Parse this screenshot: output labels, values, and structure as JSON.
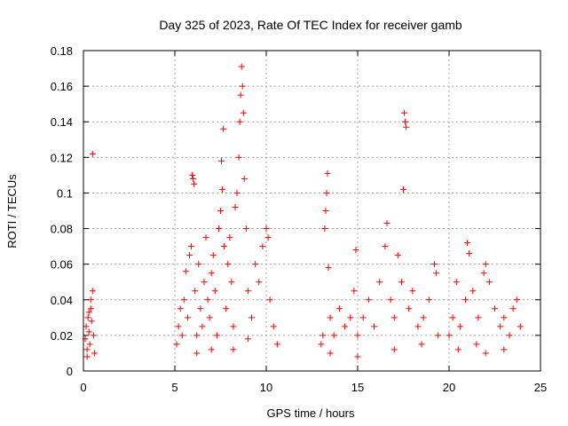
{
  "chart_data": {
    "type": "scatter",
    "title": "Day 325 of 2023, Rate Of TEC Index for receiver gamb",
    "xlabel": "GPS time / hours",
    "ylabel": "ROTI / TECUs",
    "xlim": [
      0,
      25
    ],
    "ylim": [
      0,
      0.18
    ],
    "xticks": [
      "0",
      "5",
      "10",
      "15",
      "20",
      "25"
    ],
    "yticks": [
      "0",
      "0.02",
      "0.04",
      "0.06",
      "0.08",
      "0.1",
      "0.12",
      "0.14",
      "0.16",
      "0.18"
    ],
    "grid": true,
    "marker": "+",
    "color": "#ff0000",
    "series": [
      {
        "points": [
          [
            0.1,
            0.018
          ],
          [
            0.15,
            0.025
          ],
          [
            0.2,
            0.012
          ],
          [
            0.25,
            0.03
          ],
          [
            0.3,
            0.022
          ],
          [
            0.35,
            0.015
          ],
          [
            0.4,
            0.035
          ],
          [
            0.45,
            0.028
          ],
          [
            0.5,
            0.045
          ],
          [
            0.55,
            0.02
          ],
          [
            0.6,
            0.01
          ],
          [
            0.5,
            0.122
          ],
          [
            0.2,
            0.008
          ],
          [
            0.4,
            0.04
          ],
          [
            0.3,
            0.033
          ],
          [
            5.1,
            0.015
          ],
          [
            5.2,
            0.025
          ],
          [
            5.3,
            0.035
          ],
          [
            5.4,
            0.02
          ],
          [
            5.5,
            0.04
          ],
          [
            5.6,
            0.056
          ],
          [
            5.7,
            0.03
          ],
          [
            5.8,
            0.065
          ],
          [
            5.9,
            0.07
          ],
          [
            5.95,
            0.11
          ],
          [
            6.0,
            0.108
          ],
          [
            6.05,
            0.105
          ],
          [
            6.1,
            0.045
          ],
          [
            6.2,
            0.02
          ],
          [
            6.3,
            0.06
          ],
          [
            6.4,
            0.035
          ],
          [
            6.5,
            0.025
          ],
          [
            6.6,
            0.05
          ],
          [
            6.7,
            0.075
          ],
          [
            6.8,
            0.04
          ],
          [
            6.9,
            0.03
          ],
          [
            7.0,
            0.055
          ],
          [
            7.1,
            0.065
          ],
          [
            7.2,
            0.045
          ],
          [
            7.3,
            0.02
          ],
          [
            7.4,
            0.08
          ],
          [
            7.5,
            0.09
          ],
          [
            7.55,
            0.118
          ],
          [
            7.6,
            0.102
          ],
          [
            7.65,
            0.136
          ],
          [
            7.7,
            0.07
          ],
          [
            7.8,
            0.035
          ],
          [
            7.9,
            0.06
          ],
          [
            8.0,
            0.075
          ],
          [
            8.1,
            0.05
          ],
          [
            8.2,
            0.025
          ],
          [
            8.3,
            0.092
          ],
          [
            8.4,
            0.1
          ],
          [
            8.5,
            0.12
          ],
          [
            8.55,
            0.14
          ],
          [
            8.6,
            0.155
          ],
          [
            8.65,
            0.171
          ],
          [
            8.7,
            0.16
          ],
          [
            8.75,
            0.145
          ],
          [
            8.8,
            0.108
          ],
          [
            8.9,
            0.08
          ],
          [
            9.0,
            0.045
          ],
          [
            9.2,
            0.03
          ],
          [
            9.4,
            0.06
          ],
          [
            9.6,
            0.05
          ],
          [
            9.8,
            0.07
          ],
          [
            10.0,
            0.08
          ],
          [
            10.1,
            0.075
          ],
          [
            10.2,
            0.04
          ],
          [
            10.4,
            0.025
          ],
          [
            10.6,
            0.015
          ],
          [
            8.2,
            0.012
          ],
          [
            9.0,
            0.018
          ],
          [
            6.2,
            0.01
          ],
          [
            7.0,
            0.012
          ],
          [
            13.0,
            0.015
          ],
          [
            13.1,
            0.02
          ],
          [
            13.2,
            0.08
          ],
          [
            13.25,
            0.09
          ],
          [
            13.3,
            0.1
          ],
          [
            13.35,
            0.111
          ],
          [
            13.4,
            0.058
          ],
          [
            13.5,
            0.03
          ],
          [
            13.7,
            0.02
          ],
          [
            14.0,
            0.035
          ],
          [
            14.3,
            0.025
          ],
          [
            14.6,
            0.03
          ],
          [
            14.8,
            0.045
          ],
          [
            14.9,
            0.068
          ],
          [
            15.0,
            0.02
          ],
          [
            15.3,
            0.03
          ],
          [
            15.6,
            0.04
          ],
          [
            15.9,
            0.025
          ],
          [
            16.2,
            0.05
          ],
          [
            16.5,
            0.07
          ],
          [
            16.6,
            0.083
          ],
          [
            16.8,
            0.04
          ],
          [
            17.0,
            0.03
          ],
          [
            17.2,
            0.065
          ],
          [
            17.4,
            0.05
          ],
          [
            17.5,
            0.102
          ],
          [
            17.55,
            0.145
          ],
          [
            17.6,
            0.14
          ],
          [
            17.65,
            0.137
          ],
          [
            17.8,
            0.035
          ],
          [
            18.0,
            0.045
          ],
          [
            18.3,
            0.025
          ],
          [
            18.6,
            0.03
          ],
          [
            18.9,
            0.04
          ],
          [
            19.2,
            0.06
          ],
          [
            19.3,
            0.055
          ],
          [
            19.4,
            0.02
          ],
          [
            13.5,
            0.01
          ],
          [
            15.0,
            0.008
          ],
          [
            17.0,
            0.012
          ],
          [
            18.5,
            0.015
          ],
          [
            20.0,
            0.02
          ],
          [
            20.2,
            0.03
          ],
          [
            20.4,
            0.05
          ],
          [
            20.6,
            0.025
          ],
          [
            20.9,
            0.04
          ],
          [
            21.0,
            0.072
          ],
          [
            21.1,
            0.066
          ],
          [
            21.3,
            0.045
          ],
          [
            21.6,
            0.03
          ],
          [
            21.9,
            0.055
          ],
          [
            22.0,
            0.06
          ],
          [
            22.2,
            0.05
          ],
          [
            22.5,
            0.035
          ],
          [
            22.8,
            0.025
          ],
          [
            23.0,
            0.03
          ],
          [
            23.3,
            0.02
          ],
          [
            23.5,
            0.035
          ],
          [
            23.7,
            0.04
          ],
          [
            23.9,
            0.025
          ],
          [
            20.5,
            0.012
          ],
          [
            22.0,
            0.01
          ],
          [
            23.0,
            0.012
          ],
          [
            21.5,
            0.015
          ]
        ]
      }
    ]
  }
}
